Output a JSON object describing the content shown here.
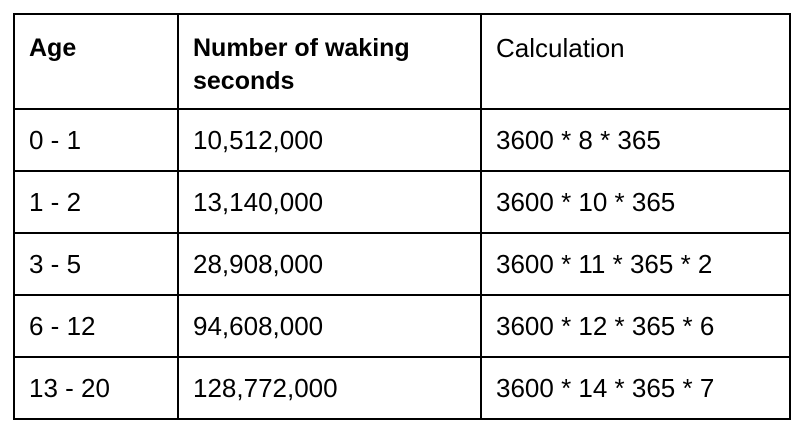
{
  "table": {
    "headers": [
      "Age",
      "Number of waking seconds",
      "Calculation"
    ],
    "rows": [
      {
        "age": "0 - 1",
        "seconds": "10,512,000",
        "calculation": "3600 * 8 * 365"
      },
      {
        "age": "1 - 2",
        "seconds": "13,140,000",
        "calculation": "3600 * 10 * 365"
      },
      {
        "age": "3 - 5",
        "seconds": "28,908,000",
        "calculation": "3600 * 11 * 365 * 2"
      },
      {
        "age": "6 - 12",
        "seconds": "94,608,000",
        "calculation": "3600 * 12 * 365 * 6"
      },
      {
        "age": "13 - 20",
        "seconds": "128,772,000",
        "calculation": "3600 * 14 * 365 * 7"
      }
    ]
  }
}
